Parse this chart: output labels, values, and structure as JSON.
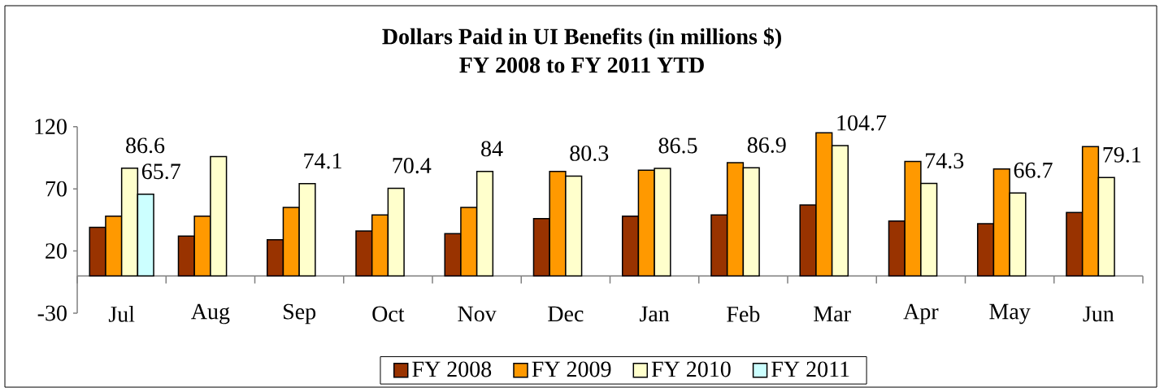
{
  "chart_data": {
    "type": "bar",
    "title": "Dollars Paid in UI Benefits (in millions $)",
    "subtitle": "FY 2008 to FY 2011 YTD",
    "categories": [
      "Jul",
      "Aug",
      "Sep",
      "Oct",
      "Nov",
      "Dec",
      "Jan",
      "Feb",
      "Mar",
      "Apr",
      "May",
      "Jun"
    ],
    "series": [
      {
        "name": "FY 2008",
        "color": "#993300",
        "values": [
          39,
          32,
          29,
          36,
          34,
          46,
          48,
          49,
          57,
          44,
          42,
          51
        ]
      },
      {
        "name": "FY 2009",
        "color": "#ff9900",
        "values": [
          48,
          48,
          55,
          49,
          55,
          84,
          85,
          91,
          115,
          92,
          86,
          104
        ]
      },
      {
        "name": "FY 2010",
        "color": "#ffffcc",
        "values": [
          86.6,
          96,
          74.1,
          70.4,
          84,
          80.3,
          86.5,
          86.9,
          104.7,
          74.3,
          66.7,
          79.1
        ],
        "value_labels": [
          "86.6",
          null,
          "74.1",
          "70.4",
          "84",
          "80.3",
          "86.5",
          "86.9",
          "104.7",
          "74.3",
          "66.7",
          "79.1"
        ]
      },
      {
        "name": "FY 2011",
        "color": "#ccffff",
        "values": [
          65.7,
          null,
          null,
          null,
          null,
          null,
          null,
          null,
          null,
          null,
          null,
          null
        ],
        "value_labels": [
          "65.7",
          null,
          null,
          null,
          null,
          null,
          null,
          null,
          null,
          null,
          null,
          null
        ]
      }
    ],
    "ylim": [
      -30,
      120
    ],
    "yticks": [
      -30,
      20,
      70,
      120
    ],
    "legend": "bottom"
  }
}
